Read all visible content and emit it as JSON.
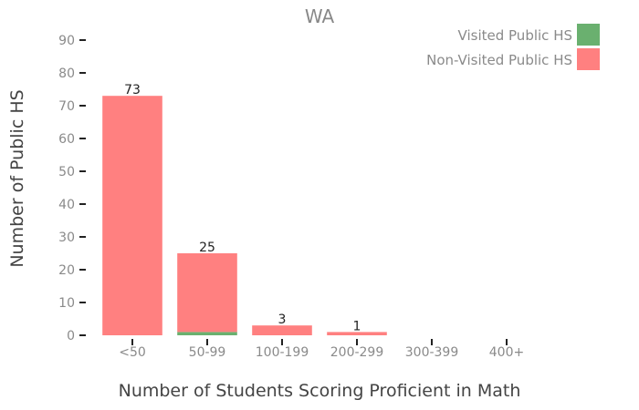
{
  "chart_data": {
    "type": "bar",
    "stacked": true,
    "title": "WA",
    "xlabel": "Number of Students Scoring Proficient in Math",
    "ylabel": "Number of Public HS",
    "categories": [
      "<50",
      "50-99",
      "100-199",
      "200-299",
      "300-399",
      "400+"
    ],
    "series": [
      {
        "name": "Visited Public HS",
        "color": "#6ab06f",
        "values": [
          0,
          1,
          0,
          0,
          0,
          0
        ]
      },
      {
        "name": "Non-Visited Public HS",
        "color": "#ff8080",
        "values": [
          73,
          24,
          3,
          1,
          0,
          0
        ]
      }
    ],
    "totals_labels": [
      "73",
      "25",
      "3",
      "1",
      "",
      ""
    ],
    "ylim": [
      0,
      90
    ],
    "yticks": [
      0,
      10,
      20,
      30,
      40,
      50,
      60,
      70,
      80,
      90
    ],
    "grid": false,
    "legend_position": "top-right"
  }
}
